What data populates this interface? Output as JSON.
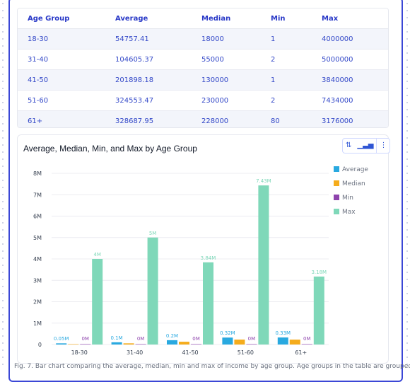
{
  "table": {
    "columns": [
      "Age Group",
      "Average",
      "Median",
      "Min",
      "Max"
    ],
    "rows": [
      [
        "18-30",
        "54757.41",
        "18000",
        "1",
        "4000000"
      ],
      [
        "31-40",
        "104605.37",
        "55000",
        "2",
        "5000000"
      ],
      [
        "41-50",
        "201898.18",
        "130000",
        "1",
        "3840000"
      ],
      [
        "51-60",
        "324553.47",
        "230000",
        "2",
        "7434000"
      ],
      [
        "61+",
        "328687.95",
        "228000",
        "80",
        "3176000"
      ]
    ]
  },
  "chart_toolbar": {
    "sort_icon": "sort-arrows-icon",
    "chart_icon": "bar-chart-icon",
    "menu_icon": "more-vertical-icon"
  },
  "chart_data": {
    "type": "bar",
    "title": "Average, Median, Min, and Max by Age Group",
    "xlabel": "",
    "ylabel": "",
    "categories": [
      "18-30",
      "31-40",
      "41-50",
      "51-60",
      "61+"
    ],
    "ylim": [
      0,
      8000000
    ],
    "yticks": [
      "0",
      "1M",
      "2M",
      "3M",
      "4M",
      "5M",
      "6M",
      "7M",
      "8M"
    ],
    "legend_position": "top-right",
    "grid": true,
    "series": [
      {
        "name": "Average",
        "color": "#29a9e0",
        "values": [
          54757.41,
          104605.37,
          201898.18,
          324553.47,
          328687.95
        ],
        "labels": [
          "0.05M",
          "0.1M",
          "0.2M",
          "0.32M",
          "0.33M"
        ]
      },
      {
        "name": "Median",
        "color": "#f5ac1c",
        "values": [
          18000,
          55000,
          130000,
          230000,
          228000
        ],
        "labels": [
          "",
          "",
          "",
          "",
          ""
        ]
      },
      {
        "name": "Min",
        "color": "#8e44ad",
        "values": [
          1,
          2,
          1,
          2,
          80
        ],
        "labels": [
          "0M",
          "0M",
          "0M",
          "0M",
          "0M"
        ]
      },
      {
        "name": "Max",
        "color": "#7fd8b9",
        "values": [
          4000000,
          5000000,
          3840000,
          7434000,
          3176000
        ],
        "labels": [
          "4M",
          "5M",
          "3.84M",
          "7.43M",
          "3.18M"
        ]
      }
    ]
  },
  "footer": "Fig. 7. Bar chart comparing the average, median, min and max of income by age group. Age groups in the table are grouped."
}
